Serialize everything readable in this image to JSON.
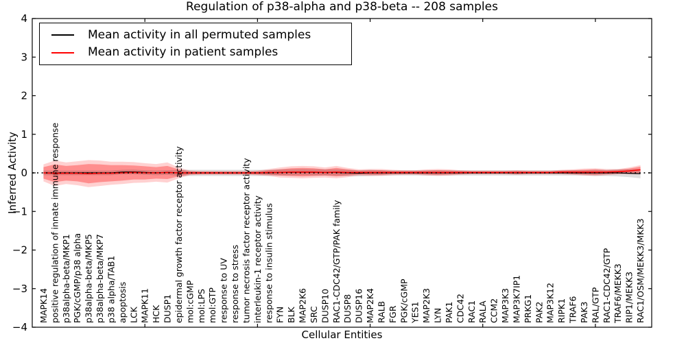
{
  "title": "Regulation of p38-alpha and p38-beta -- 208 samples",
  "legend": {
    "items": [
      {
        "label": "Mean activity in all permuted samples",
        "color": "#000000"
      },
      {
        "label": "Mean activity in patient samples",
        "color": "#ff0000"
      }
    ]
  },
  "chart_data": {
    "type": "line",
    "title": "Regulation of p38-alpha and p38-beta -- 208 samples",
    "xlabel": "Cellular Entities",
    "ylabel": "Inferred Activity",
    "ylim": [
      -4,
      4
    ],
    "grid": false,
    "legend_position": "upper left",
    "ytick_values": [
      4,
      3,
      2,
      1,
      0,
      -1,
      -2,
      -3,
      -4
    ],
    "ytick_labels": [
      "4",
      "3",
      "2",
      "1",
      "0",
      "−1",
      "−2",
      "−3",
      "−4"
    ],
    "x_major_tick_positions": [
      10,
      20,
      30,
      40,
      50
    ],
    "zero_line": {
      "style": "dotted",
      "color": "#000000"
    },
    "categories": [
      "MAPK14",
      "positive regulation of innate immune response",
      "p38alpha-beta/MKP1",
      "PGK/cGMP/p38 alpha",
      "p38alpha-beta/MKP5",
      "p38alpha-beta/MKP7",
      "p38 alpha/TAB1",
      "apoptosis",
      "LCK",
      "MAPK11",
      "HCK",
      "DUSP1",
      "epidermal growth factor receptor activity",
      "mol:cGMP",
      "mol:LPS",
      "mol:GTP",
      "response to UV",
      "response to stress",
      "tumor necrosis factor receptor activity",
      "interleukin-1 receptor activity",
      "response to insulin stimulus",
      "FYN",
      "BLK",
      "MAP2K6",
      "SRC",
      "DUSP10",
      "RAC1-CDC42/GTP/PAK family",
      "DUSP8",
      "DUSP16",
      "MAP2K4",
      "RALB",
      "FGR",
      "PGK/cGMP",
      "YES1",
      "MAP2K3",
      "LYN",
      "PAK1",
      "CDC42",
      "RAC1",
      "RALA",
      "CCM2",
      "MAP3K3",
      "MAP3K7IP1",
      "PRKG1",
      "PAK2",
      "MAP3K12",
      "RIPK1",
      "TRAF6",
      "PAK3",
      "RAL/GTP",
      "RAC1-CDC42/GTP",
      "TRAF6/MEKK3",
      "RIP1/MEKK3",
      "RAC1/OSM/MEKK3/MKK3"
    ],
    "series": [
      {
        "name": "Mean activity in all permuted samples",
        "color": "#000000",
        "values": [
          0,
          0,
          0,
          0,
          0,
          0,
          0,
          0.02,
          0.025,
          0.01,
          0,
          0.01,
          0,
          0,
          0,
          0,
          0,
          0,
          0,
          0,
          0,
          0.01,
          0.015,
          0.02,
          0.015,
          0.01,
          0.01,
          0,
          -0.01,
          0,
          0,
          0,
          0,
          0,
          0,
          0,
          0,
          0,
          0,
          0,
          0,
          0,
          0,
          0,
          0,
          0,
          0,
          0,
          0,
          0,
          0,
          0,
          -0.01,
          -0.02
        ]
      },
      {
        "name": "Mean activity in patient samples",
        "color": "#ff0000",
        "values": [
          0,
          -0.01,
          -0.01,
          -0.01,
          -0.02,
          -0.01,
          -0.01,
          0,
          0.01,
          0,
          0,
          0.01,
          0,
          0,
          0,
          0,
          0,
          0,
          0,
          0,
          0.01,
          0.01,
          0.02,
          0.02,
          0.02,
          0.01,
          0.02,
          0.01,
          0.01,
          0.01,
          0.01,
          0.01,
          0.01,
          0.01,
          0.01,
          0.01,
          0.01,
          0.01,
          0.01,
          0.01,
          0.01,
          0.01,
          0.01,
          0.01,
          0.01,
          0.01,
          0.02,
          0.02,
          0.02,
          0.02,
          0.02,
          0.03,
          0.05,
          0.08
        ]
      }
    ],
    "bands": [
      {
        "name": "patient samples spread (outer)",
        "color": "rgba(255,0,0,0.18)",
        "center_series": 1,
        "half_widths": [
          0.22,
          0.33,
          0.28,
          0.31,
          0.35,
          0.33,
          0.3,
          0.29,
          0.27,
          0.25,
          0.23,
          0.26,
          0.14,
          0.06,
          0.05,
          0.05,
          0.05,
          0.05,
          0.05,
          0.06,
          0.09,
          0.13,
          0.15,
          0.16,
          0.15,
          0.13,
          0.16,
          0.12,
          0.08,
          0.09,
          0.09,
          0.07,
          0.06,
          0.06,
          0.08,
          0.09,
          0.08,
          0.06,
          0.05,
          0.05,
          0.05,
          0.05,
          0.06,
          0.05,
          0.05,
          0.05,
          0.06,
          0.07,
          0.09,
          0.1,
          0.08,
          0.07,
          0.09,
          0.12
        ]
      },
      {
        "name": "patient samples spread (inner)",
        "color": "rgba(255,0,0,0.32)",
        "center_series": 1,
        "half_widths": [
          0.15,
          0.23,
          0.19,
          0.21,
          0.25,
          0.23,
          0.21,
          0.2,
          0.18,
          0.17,
          0.15,
          0.17,
          0.09,
          0.04,
          0.03,
          0.03,
          0.03,
          0.03,
          0.03,
          0.04,
          0.06,
          0.08,
          0.1,
          0.11,
          0.1,
          0.08,
          0.11,
          0.08,
          0.05,
          0.06,
          0.06,
          0.04,
          0.04,
          0.04,
          0.05,
          0.06,
          0.05,
          0.04,
          0.03,
          0.03,
          0.03,
          0.03,
          0.04,
          0.03,
          0.03,
          0.03,
          0.04,
          0.05,
          0.06,
          0.07,
          0.05,
          0.05,
          0.06,
          0.08
        ]
      },
      {
        "name": "permuted samples spread",
        "color": "rgba(0,0,0,0.13)",
        "center_series": 0,
        "half_widths": [
          0.06,
          0.06,
          0.06,
          0.06,
          0.06,
          0.06,
          0.06,
          0.06,
          0.06,
          0.06,
          0.06,
          0.06,
          0.08,
          0.08,
          0.08,
          0.08,
          0.08,
          0.08,
          0.08,
          0.08,
          0.08,
          0.08,
          0.08,
          0.08,
          0.08,
          0.08,
          0.08,
          0.08,
          0.08,
          0.08,
          0.07,
          0.07,
          0.07,
          0.07,
          0.07,
          0.07,
          0.07,
          0.07,
          0.07,
          0.07,
          0.07,
          0.07,
          0.07,
          0.07,
          0.07,
          0.07,
          0.07,
          0.07,
          0.07,
          0.08,
          0.08,
          0.09,
          0.1,
          0.12
        ]
      }
    ]
  }
}
